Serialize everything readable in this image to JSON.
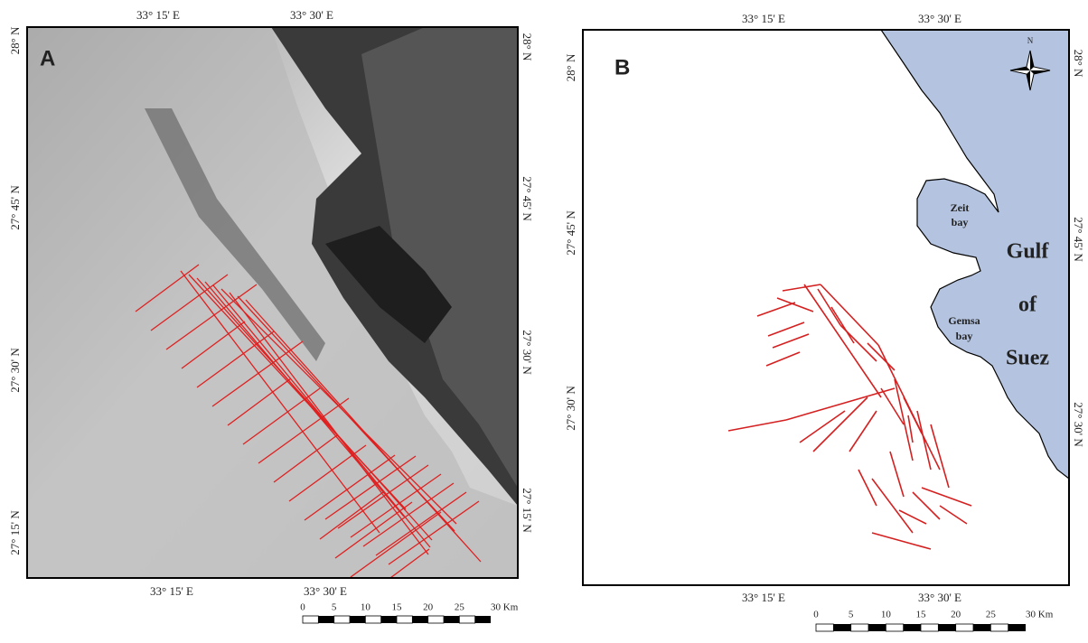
{
  "panels": [
    {
      "label": "A",
      "lon_labels": [
        "33° 15' E",
        "33° 30' E"
      ],
      "lat_labels": [
        "28° N",
        "27° 45' N",
        "27° 30' N",
        "27° 15' N"
      ],
      "scale_labels": [
        "0",
        "5",
        "10",
        "15",
        "20",
        "25",
        "30 Km"
      ]
    },
    {
      "label": "B",
      "lon_labels": [
        "33° 15' E",
        "33° 30' E"
      ],
      "lat_labels": [
        "28° N",
        "27° 45' N",
        "27° 30' N"
      ],
      "scale_labels": [
        "0",
        "5",
        "10",
        "15",
        "20",
        "25",
        "30 Km"
      ],
      "north": "N",
      "places": [
        "Zeit",
        "bay",
        "Gemsa",
        "bay",
        "Gulf",
        "of",
        "Suez"
      ]
    }
  ]
}
